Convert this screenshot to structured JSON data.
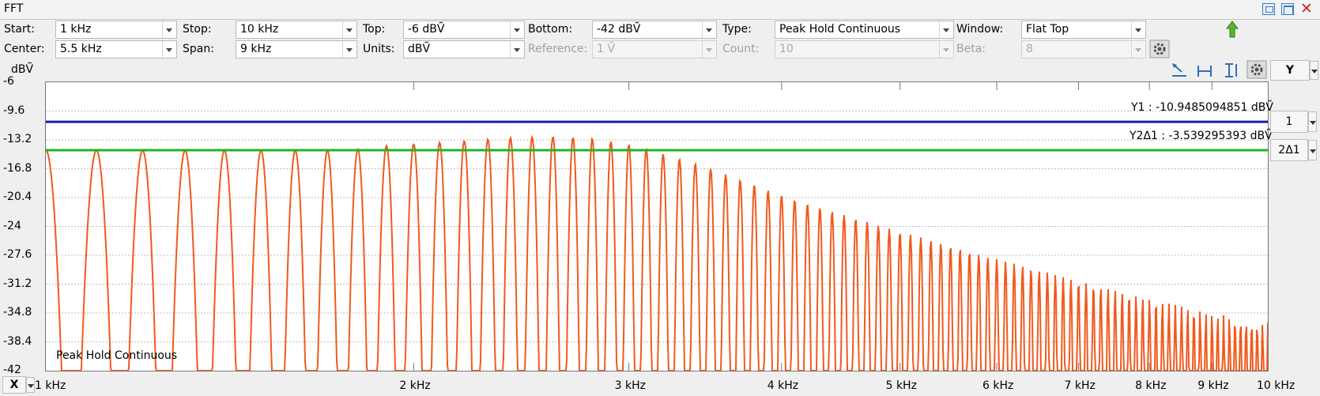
{
  "window": {
    "title": "FFT"
  },
  "toolbar": {
    "row1": {
      "start_label": "Start:",
      "start_value": "1 kHz",
      "stop_label": "Stop:",
      "stop_value": "10 kHz",
      "top_label": "Top:",
      "top_value": "-6 dBṼ",
      "bottom_label": "Bottom:",
      "bottom_value": "-42 dBṼ",
      "type_label": "Type:",
      "type_value": "Peak Hold Continuous",
      "window_label": "Window:",
      "window_value": "Flat Top"
    },
    "row2": {
      "center_label": "Center:",
      "center_value": "5.5 kHz",
      "span_label": "Span:",
      "span_value": "9 kHz",
      "units_label": "Units:",
      "units_value": "dBṼ",
      "reference_label": "Reference:",
      "reference_value": "1 Ṽ",
      "count_label": "Count:",
      "count_value": "10",
      "beta_label": "Beta:",
      "beta_value": "8"
    }
  },
  "plot": {
    "y_unit": "dBṼ",
    "y_axis_button": "Y",
    "x_axis_button": "X",
    "cursor1_button": "1",
    "cursor2_button": "2Δ1",
    "cursor1_label": "Y1 : -10.9485094851 dBṼ",
    "cursor2_label": "Y2Δ1 : -3.539295393 dBṼ",
    "trace_label": "Peak Hold Continuous",
    "colors": {
      "trace": "#f05a1e",
      "cursor1": "#1a1aa8",
      "cursor2": "#22b422",
      "grid": "#bdbdbd"
    }
  },
  "chart_data": {
    "type": "line",
    "y_unit": "dBṼ",
    "ylim": [
      -42,
      -6
    ],
    "xlim_hz": [
      1000,
      10000
    ],
    "x_scale": "log",
    "y_ticks": [
      "-6",
      "-9.6",
      "-13.2",
      "-16.8",
      "-20.4",
      "-24",
      "-27.6",
      "-31.2",
      "-34.8",
      "-38.4",
      "-42"
    ],
    "x_ticks": [
      {
        "label": "1 kHz",
        "hz": 1000
      },
      {
        "label": "2 kHz",
        "hz": 2000
      },
      {
        "label": "3 kHz",
        "hz": 3000
      },
      {
        "label": "4 kHz",
        "hz": 4000
      },
      {
        "label": "5 kHz",
        "hz": 5000
      },
      {
        "label": "6 kHz",
        "hz": 6000
      },
      {
        "label": "7 kHz",
        "hz": 7000
      },
      {
        "label": "8 kHz",
        "hz": 8000
      },
      {
        "label": "9 kHz",
        "hz": 9000
      },
      {
        "label": "10 kHz",
        "hz": 10000
      }
    ],
    "cursors": [
      {
        "name": "Y1",
        "value_dbv": -10.9485094851
      },
      {
        "name": "Y2",
        "value_dbv": -14.4878048781
      }
    ],
    "series": [
      {
        "name": "Peak Hold Continuous",
        "peaks": [
          {
            "x_hz": 1000,
            "y_dbv": -14.5
          },
          {
            "x_hz": 1092,
            "y_dbv": -14.5
          },
          {
            "x_hz": 1191,
            "y_dbv": -14.5
          },
          {
            "x_hz": 1285,
            "y_dbv": -14.5
          },
          {
            "x_hz": 1378,
            "y_dbv": -14.5
          },
          {
            "x_hz": 1473,
            "y_dbv": -14.5
          },
          {
            "x_hz": 1573,
            "y_dbv": -14.5
          },
          {
            "x_hz": 1670,
            "y_dbv": -14.5
          },
          {
            "x_hz": 1770,
            "y_dbv": -14.5
          },
          {
            "x_hz": 1870,
            "y_dbv": -14.0
          },
          {
            "x_hz": 1970,
            "y_dbv": -13.8
          },
          {
            "x_hz": 2070,
            "y_dbv": -13.6
          },
          {
            "x_hz": 2170,
            "y_dbv": -13.4
          },
          {
            "x_hz": 2270,
            "y_dbv": -13.2
          },
          {
            "x_hz": 2370,
            "y_dbv": -13.0
          },
          {
            "x_hz": 2470,
            "y_dbv": -12.9
          },
          {
            "x_hz": 2570,
            "y_dbv": -12.8
          },
          {
            "x_hz": 2670,
            "y_dbv": -12.9
          },
          {
            "x_hz": 2770,
            "y_dbv": -13.0
          },
          {
            "x_hz": 2870,
            "y_dbv": -13.3
          },
          {
            "x_hz": 2970,
            "y_dbv": -13.7
          },
          {
            "x_hz": 3070,
            "y_dbv": -14.2
          },
          {
            "x_hz": 3170,
            "y_dbv": -14.8
          },
          {
            "x_hz": 3270,
            "y_dbv": -15.4
          },
          {
            "x_hz": 3370,
            "y_dbv": -16.0
          },
          {
            "x_hz": 3470,
            "y_dbv": -16.6
          },
          {
            "x_hz": 3570,
            "y_dbv": -17.3
          },
          {
            "x_hz": 3670,
            "y_dbv": -18.0
          },
          {
            "x_hz": 3770,
            "y_dbv": -18.6
          },
          {
            "x_hz": 3870,
            "y_dbv": -19.3
          },
          {
            "x_hz": 3970,
            "y_dbv": -20.0
          },
          {
            "x_hz": 4370,
            "y_dbv": -22.0
          },
          {
            "x_hz": 4970,
            "y_dbv": -24.6
          },
          {
            "x_hz": 5970,
            "y_dbv": -28.0
          },
          {
            "x_hz": 6970,
            "y_dbv": -30.8
          },
          {
            "x_hz": 7970,
            "y_dbv": -33.0
          },
          {
            "x_hz": 8970,
            "y_dbv": -34.8
          },
          {
            "x_hz": 9970,
            "y_dbv": -36.0
          }
        ]
      }
    ]
  }
}
